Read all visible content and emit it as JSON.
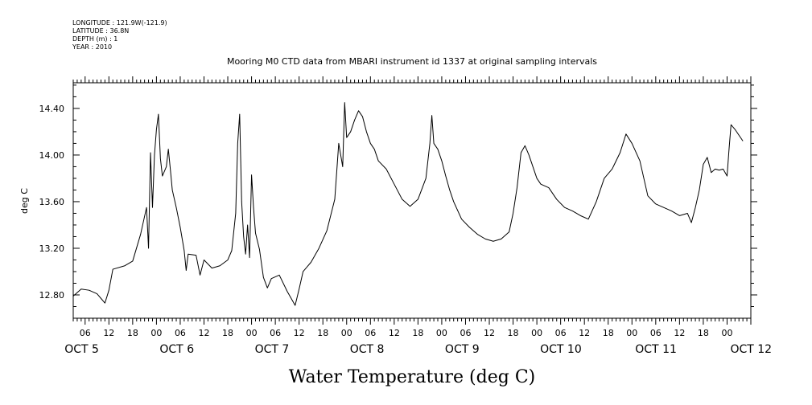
{
  "header": {
    "longitude": "LONGITUDE : 121.9W(-121.9)",
    "latitude": "LATITUDE : 36.8N",
    "depth": "DEPTH (m) : 1",
    "year": "YEAR : 2010"
  },
  "chart_data": {
    "type": "line",
    "title": "Mooring M0 CTD data from MBARI instrument id 1337 at original sampling intervals",
    "xlabel": "Water Temperature (deg C)",
    "ylabel": "deg C",
    "ylim": [
      12.6,
      14.62
    ],
    "yticks": [
      "12.80",
      "13.20",
      "13.60",
      "14.00",
      "14.40"
    ],
    "xlim": [
      "2010-10-05T03:00",
      "2010-10-12T06:00"
    ],
    "hour_ticks": [
      "06",
      "12",
      "18",
      "00",
      "06",
      "12",
      "18",
      "00",
      "06",
      "12",
      "18",
      "00",
      "06",
      "12",
      "18",
      "00",
      "06",
      "12",
      "18",
      "00",
      "06",
      "12",
      "18",
      "00",
      "06",
      "12",
      "18",
      "00"
    ],
    "day_labels": [
      "OCT  5",
      "OCT  6",
      "OCT  7",
      "OCT  8",
      "OCT  9",
      "OCT 10",
      "OCT 11",
      "OCT 12"
    ],
    "grid": false,
    "series": [
      {
        "color": "#000000",
        "points": [
          [
            "2010-10-05T03:00",
            12.79
          ],
          [
            "2010-10-05T05:00",
            12.85
          ],
          [
            "2010-10-05T07:00",
            12.84
          ],
          [
            "2010-10-05T09:00",
            12.81
          ],
          [
            "2010-10-05T11:00",
            12.73
          ],
          [
            "2010-10-05T12:00",
            12.84
          ],
          [
            "2010-10-05T13:00",
            13.02
          ],
          [
            "2010-10-05T16:00",
            13.05
          ],
          [
            "2010-10-05T18:00",
            13.09
          ],
          [
            "2010-10-05T20:00",
            13.32
          ],
          [
            "2010-10-05T21:30",
            13.55
          ],
          [
            "2010-10-05T22:00",
            13.2
          ],
          [
            "2010-10-05T22:30",
            14.02
          ],
          [
            "2010-10-05T23:00",
            13.55
          ],
          [
            "2010-10-05T23:30",
            14.0
          ],
          [
            "2010-10-06T00:00",
            14.22
          ],
          [
            "2010-10-06T00:30",
            14.35
          ],
          [
            "2010-10-06T01:00",
            13.97
          ],
          [
            "2010-10-06T01:30",
            13.82
          ],
          [
            "2010-10-06T02:30",
            13.9
          ],
          [
            "2010-10-06T03:00",
            14.05
          ],
          [
            "2010-10-06T03:30",
            13.88
          ],
          [
            "2010-10-06T04:00",
            13.7
          ],
          [
            "2010-10-06T05:00",
            13.55
          ],
          [
            "2010-10-06T06:00",
            13.38
          ],
          [
            "2010-10-06T07:00",
            13.18
          ],
          [
            "2010-10-06T07:30",
            13.01
          ],
          [
            "2010-10-06T08:00",
            13.15
          ],
          [
            "2010-10-06T10:00",
            13.14
          ],
          [
            "2010-10-06T11:00",
            12.97
          ],
          [
            "2010-10-06T12:00",
            13.1
          ],
          [
            "2010-10-06T14:00",
            13.03
          ],
          [
            "2010-10-06T16:00",
            13.05
          ],
          [
            "2010-10-06T18:00",
            13.1
          ],
          [
            "2010-10-06T19:00",
            13.18
          ],
          [
            "2010-10-06T20:00",
            13.5
          ],
          [
            "2010-10-06T20:30",
            14.1
          ],
          [
            "2010-10-06T21:00",
            14.35
          ],
          [
            "2010-10-06T21:30",
            13.6
          ],
          [
            "2010-10-06T22:00",
            13.3
          ],
          [
            "2010-10-06T22:30",
            13.15
          ],
          [
            "2010-10-06T23:00",
            13.4
          ],
          [
            "2010-10-06T23:30",
            13.12
          ],
          [
            "2010-10-07T00:00",
            13.83
          ],
          [
            "2010-10-07T00:30",
            13.55
          ],
          [
            "2010-10-07T01:00",
            13.33
          ],
          [
            "2010-10-07T02:00",
            13.19
          ],
          [
            "2010-10-07T03:00",
            12.95
          ],
          [
            "2010-10-07T04:00",
            12.86
          ],
          [
            "2010-10-07T05:00",
            12.94
          ],
          [
            "2010-10-07T07:00",
            12.97
          ],
          [
            "2010-10-07T09:00",
            12.83
          ],
          [
            "2010-10-07T11:00",
            12.71
          ],
          [
            "2010-10-07T12:00",
            12.85
          ],
          [
            "2010-10-07T13:00",
            13.0
          ],
          [
            "2010-10-07T15:00",
            13.08
          ],
          [
            "2010-10-07T17:00",
            13.2
          ],
          [
            "2010-10-07T19:00",
            13.35
          ],
          [
            "2010-10-07T21:00",
            13.62
          ],
          [
            "2010-10-07T22:00",
            14.1
          ],
          [
            "2010-10-07T23:00",
            13.9
          ],
          [
            "2010-10-07T23:30",
            14.45
          ],
          [
            "2010-10-08T00:00",
            14.15
          ],
          [
            "2010-10-08T01:00",
            14.2
          ],
          [
            "2010-10-08T02:00",
            14.3
          ],
          [
            "2010-10-08T03:00",
            14.38
          ],
          [
            "2010-10-08T04:00",
            14.33
          ],
          [
            "2010-10-08T05:00",
            14.2
          ],
          [
            "2010-10-08T06:00",
            14.1
          ],
          [
            "2010-10-08T07:00",
            14.05
          ],
          [
            "2010-10-08T08:00",
            13.95
          ],
          [
            "2010-10-08T10:00",
            13.88
          ],
          [
            "2010-10-08T12:00",
            13.75
          ],
          [
            "2010-10-08T14:00",
            13.62
          ],
          [
            "2010-10-08T16:00",
            13.56
          ],
          [
            "2010-10-08T18:00",
            13.62
          ],
          [
            "2010-10-08T20:00",
            13.8
          ],
          [
            "2010-10-08T21:00",
            14.1
          ],
          [
            "2010-10-08T21:30",
            14.34
          ],
          [
            "2010-10-08T22:00",
            14.1
          ],
          [
            "2010-10-08T23:00",
            14.05
          ],
          [
            "2010-10-09T00:00",
            13.95
          ],
          [
            "2010-10-09T01:00",
            13.82
          ],
          [
            "2010-10-09T02:00",
            13.7
          ],
          [
            "2010-10-09T03:00",
            13.6
          ],
          [
            "2010-10-09T05:00",
            13.45
          ],
          [
            "2010-10-09T07:00",
            13.38
          ],
          [
            "2010-10-09T09:00",
            13.32
          ],
          [
            "2010-10-09T11:00",
            13.28
          ],
          [
            "2010-10-09T13:00",
            13.26
          ],
          [
            "2010-10-09T15:00",
            13.28
          ],
          [
            "2010-10-09T17:00",
            13.34
          ],
          [
            "2010-10-09T18:00",
            13.5
          ],
          [
            "2010-10-09T19:00",
            13.72
          ],
          [
            "2010-10-09T20:00",
            14.02
          ],
          [
            "2010-10-09T21:00",
            14.08
          ],
          [
            "2010-10-09T22:00",
            14.0
          ],
          [
            "2010-10-09T23:00",
            13.9
          ],
          [
            "2010-10-10T00:00",
            13.8
          ],
          [
            "2010-10-10T01:00",
            13.75
          ],
          [
            "2010-10-10T03:00",
            13.72
          ],
          [
            "2010-10-10T05:00",
            13.62
          ],
          [
            "2010-10-10T07:00",
            13.55
          ],
          [
            "2010-10-10T09:00",
            13.52
          ],
          [
            "2010-10-10T11:00",
            13.48
          ],
          [
            "2010-10-10T13:00",
            13.45
          ],
          [
            "2010-10-10T15:00",
            13.6
          ],
          [
            "2010-10-10T17:00",
            13.8
          ],
          [
            "2010-10-10T19:00",
            13.88
          ],
          [
            "2010-10-10T21:00",
            14.02
          ],
          [
            "2010-10-10T22:30",
            14.18
          ],
          [
            "2010-10-11T00:00",
            14.1
          ],
          [
            "2010-10-11T02:00",
            13.95
          ],
          [
            "2010-10-11T03:00",
            13.8
          ],
          [
            "2010-10-11T04:00",
            13.65
          ],
          [
            "2010-10-11T06:00",
            13.58
          ],
          [
            "2010-10-11T08:00",
            13.55
          ],
          [
            "2010-10-11T10:00",
            13.52
          ],
          [
            "2010-10-11T12:00",
            13.48
          ],
          [
            "2010-10-11T14:00",
            13.5
          ],
          [
            "2010-10-11T15:00",
            13.42
          ],
          [
            "2010-10-11T16:00",
            13.55
          ],
          [
            "2010-10-11T17:00",
            13.7
          ],
          [
            "2010-10-11T18:00",
            13.92
          ],
          [
            "2010-10-11T19:00",
            13.98
          ],
          [
            "2010-10-11T20:00",
            13.85
          ],
          [
            "2010-10-11T21:00",
            13.88
          ],
          [
            "2010-10-11T22:00",
            13.87
          ],
          [
            "2010-10-11T23:00",
            13.88
          ],
          [
            "2010-10-12T00:00",
            13.82
          ],
          [
            "2010-10-12T00:30",
            14.05
          ],
          [
            "2010-10-12T01:00",
            14.26
          ],
          [
            "2010-10-12T02:00",
            14.22
          ],
          [
            "2010-10-12T03:00",
            14.17
          ],
          [
            "2010-10-12T04:00",
            14.12
          ]
        ]
      }
    ]
  }
}
